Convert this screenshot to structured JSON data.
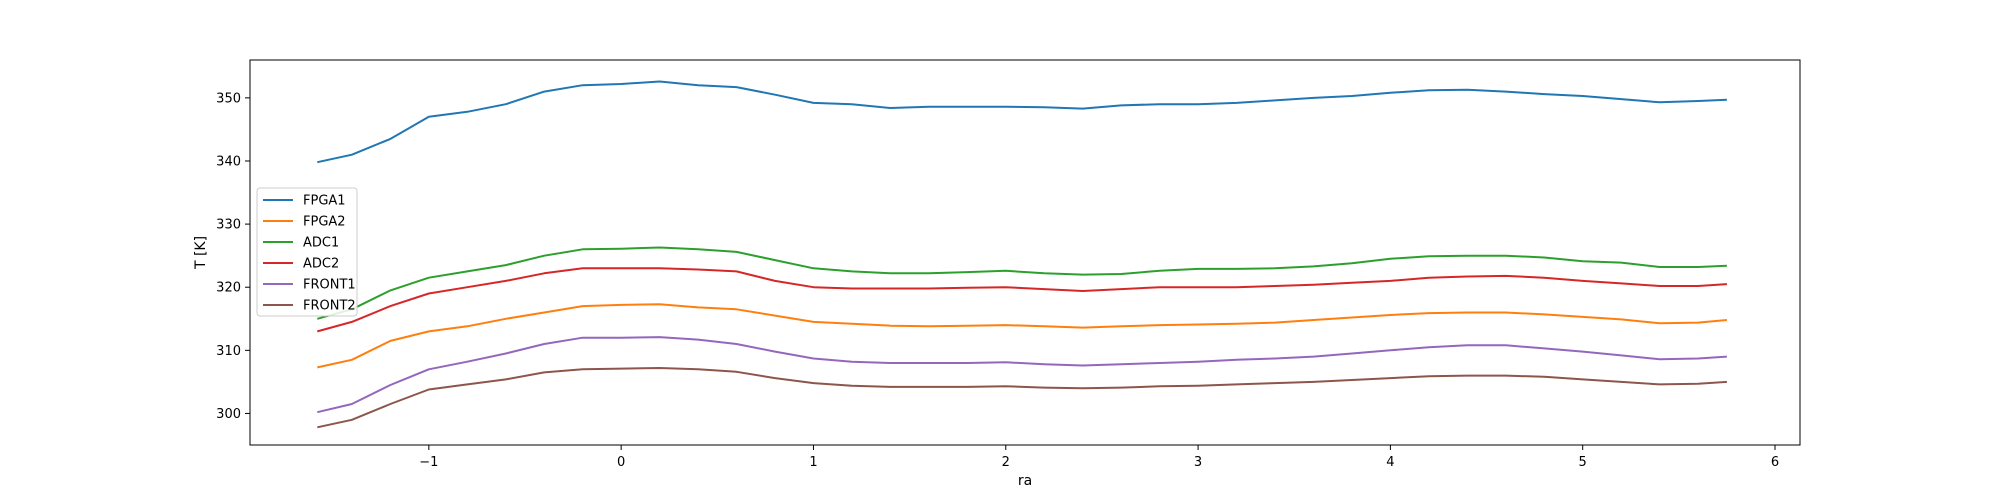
{
  "chart_data": {
    "type": "line",
    "xlabel": "ra",
    "ylabel": "T [K]",
    "xlim": [
      -1.93,
      6.13
    ],
    "ylim": [
      295,
      356
    ],
    "xticks": [
      -1,
      0,
      1,
      2,
      3,
      4,
      5,
      6
    ],
    "xtick_labels": [
      "−1",
      "0",
      "1",
      "2",
      "3",
      "4",
      "5",
      "6"
    ],
    "yticks": [
      300,
      310,
      320,
      330,
      340,
      350
    ],
    "ytick_labels": [
      "300",
      "310",
      "320",
      "330",
      "340",
      "350"
    ],
    "grid": false,
    "legend_position": "center-left",
    "series": [
      {
        "name": "FPGA1",
        "color": "#1f77b4",
        "x": [
          -1.58,
          -1.4,
          -1.2,
          -1.0,
          -0.8,
          -0.6,
          -0.4,
          -0.2,
          0.0,
          0.2,
          0.4,
          0.6,
          0.8,
          1.0,
          1.2,
          1.4,
          1.6,
          1.8,
          2.0,
          2.2,
          2.4,
          2.6,
          2.8,
          3.0,
          3.2,
          3.4,
          3.6,
          3.8,
          4.0,
          4.2,
          4.4,
          4.6,
          4.8,
          5.0,
          5.2,
          5.4,
          5.6,
          5.75
        ],
        "y": [
          339.8,
          341.0,
          343.5,
          347.0,
          347.8,
          349.0,
          351.0,
          352.0,
          352.2,
          352.6,
          352.0,
          351.7,
          350.5,
          349.2,
          349.0,
          348.4,
          348.6,
          348.6,
          348.6,
          348.5,
          348.3,
          348.8,
          349.0,
          349.0,
          349.2,
          349.6,
          350.0,
          350.3,
          350.8,
          351.2,
          351.3,
          351.0,
          350.6,
          350.3,
          349.8,
          349.3,
          349.5,
          349.7
        ]
      },
      {
        "name": "FPGA2",
        "color": "#ff7f0e",
        "x": [
          -1.58,
          -1.4,
          -1.2,
          -1.0,
          -0.8,
          -0.6,
          -0.4,
          -0.2,
          0.0,
          0.2,
          0.4,
          0.6,
          0.8,
          1.0,
          1.2,
          1.4,
          1.6,
          1.8,
          2.0,
          2.2,
          2.4,
          2.6,
          2.8,
          3.0,
          3.2,
          3.4,
          3.6,
          3.8,
          4.0,
          4.2,
          4.4,
          4.6,
          4.8,
          5.0,
          5.2,
          5.4,
          5.6,
          5.75
        ],
        "y": [
          307.3,
          308.5,
          311.5,
          313.0,
          313.8,
          315.0,
          316.0,
          317.0,
          317.2,
          317.3,
          316.8,
          316.5,
          315.5,
          314.5,
          314.2,
          313.9,
          313.8,
          313.9,
          314.0,
          313.8,
          313.6,
          313.8,
          314.0,
          314.1,
          314.2,
          314.4,
          314.8,
          315.2,
          315.6,
          315.9,
          316.0,
          316.0,
          315.7,
          315.3,
          314.9,
          314.3,
          314.4,
          314.8
        ]
      },
      {
        "name": "ADC1",
        "color": "#2ca02c",
        "x": [
          -1.58,
          -1.4,
          -1.2,
          -1.0,
          -0.8,
          -0.6,
          -0.4,
          -0.2,
          0.0,
          0.2,
          0.4,
          0.6,
          0.8,
          1.0,
          1.2,
          1.4,
          1.6,
          1.8,
          2.0,
          2.2,
          2.4,
          2.6,
          2.8,
          3.0,
          3.2,
          3.4,
          3.6,
          3.8,
          4.0,
          4.2,
          4.4,
          4.6,
          4.8,
          5.0,
          5.2,
          5.4,
          5.6,
          5.75
        ],
        "y": [
          315.0,
          316.5,
          319.5,
          321.5,
          322.5,
          323.5,
          325.0,
          326.0,
          326.1,
          326.3,
          326.0,
          325.6,
          324.3,
          323.0,
          322.5,
          322.2,
          322.2,
          322.4,
          322.6,
          322.2,
          322.0,
          322.1,
          322.6,
          322.9,
          322.9,
          323.0,
          323.3,
          323.8,
          324.5,
          324.9,
          325.0,
          325.0,
          324.7,
          324.1,
          323.9,
          323.2,
          323.2,
          323.4
        ]
      },
      {
        "name": "ADC2",
        "color": "#d62728",
        "x": [
          -1.58,
          -1.4,
          -1.2,
          -1.0,
          -0.8,
          -0.6,
          -0.4,
          -0.2,
          0.0,
          0.2,
          0.4,
          0.6,
          0.8,
          1.0,
          1.2,
          1.4,
          1.6,
          1.8,
          2.0,
          2.2,
          2.4,
          2.6,
          2.8,
          3.0,
          3.2,
          3.4,
          3.6,
          3.8,
          4.0,
          4.2,
          4.4,
          4.6,
          4.8,
          5.0,
          5.2,
          5.4,
          5.6,
          5.75
        ],
        "y": [
          313.0,
          314.5,
          317.0,
          319.0,
          320.0,
          321.0,
          322.2,
          323.0,
          323.0,
          323.0,
          322.8,
          322.5,
          321.0,
          320.0,
          319.8,
          319.8,
          319.8,
          319.9,
          320.0,
          319.7,
          319.4,
          319.7,
          320.0,
          320.0,
          320.0,
          320.2,
          320.4,
          320.7,
          321.0,
          321.5,
          321.7,
          321.8,
          321.5,
          321.0,
          320.6,
          320.2,
          320.2,
          320.5
        ]
      },
      {
        "name": "FRONT1",
        "color": "#9467bd",
        "x": [
          -1.58,
          -1.4,
          -1.2,
          -1.0,
          -0.8,
          -0.6,
          -0.4,
          -0.2,
          0.0,
          0.2,
          0.4,
          0.6,
          0.8,
          1.0,
          1.2,
          1.4,
          1.6,
          1.8,
          2.0,
          2.2,
          2.4,
          2.6,
          2.8,
          3.0,
          3.2,
          3.4,
          3.6,
          3.8,
          4.0,
          4.2,
          4.4,
          4.6,
          4.8,
          5.0,
          5.2,
          5.4,
          5.6,
          5.75
        ],
        "y": [
          300.2,
          301.5,
          304.5,
          307.0,
          308.2,
          309.5,
          311.0,
          312.0,
          312.0,
          312.1,
          311.7,
          311.0,
          309.8,
          308.7,
          308.2,
          308.0,
          308.0,
          308.0,
          308.1,
          307.8,
          307.6,
          307.8,
          308.0,
          308.2,
          308.5,
          308.7,
          309.0,
          309.5,
          310.0,
          310.5,
          310.8,
          310.8,
          310.3,
          309.8,
          309.2,
          308.6,
          308.7,
          309.0
        ]
      },
      {
        "name": "FRONT2",
        "color": "#8c564b",
        "x": [
          -1.58,
          -1.4,
          -1.2,
          -1.0,
          -0.8,
          -0.6,
          -0.4,
          -0.2,
          0.0,
          0.2,
          0.4,
          0.6,
          0.8,
          1.0,
          1.2,
          1.4,
          1.6,
          1.8,
          2.0,
          2.2,
          2.4,
          2.6,
          2.8,
          3.0,
          3.2,
          3.4,
          3.6,
          3.8,
          4.0,
          4.2,
          4.4,
          4.6,
          4.8,
          5.0,
          5.2,
          5.4,
          5.6,
          5.75
        ],
        "y": [
          297.8,
          299.0,
          301.5,
          303.8,
          304.6,
          305.4,
          306.5,
          307.0,
          307.1,
          307.2,
          307.0,
          306.6,
          305.6,
          304.8,
          304.4,
          304.2,
          304.2,
          304.2,
          304.3,
          304.1,
          304.0,
          304.1,
          304.3,
          304.4,
          304.6,
          304.8,
          305.0,
          305.3,
          305.6,
          305.9,
          306.0,
          306.0,
          305.8,
          305.4,
          305.0,
          304.6,
          304.7,
          305.0
        ]
      }
    ]
  }
}
